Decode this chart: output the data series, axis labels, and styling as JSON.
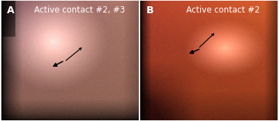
{
  "figsize": [
    4.0,
    1.74
  ],
  "dpi": 100,
  "panel_A": {
    "label": "A",
    "title": "Active contact #2, #3",
    "label_color": "white",
    "title_color": "white",
    "label_fontsize": 10,
    "title_fontsize": 8.5
  },
  "panel_B": {
    "label": "B",
    "title": "Active contact #2",
    "label_color": "white",
    "title_color": "white",
    "label_fontsize": 10,
    "title_fontsize": 8.5
  },
  "border_color": "white",
  "bg_color": "white"
}
